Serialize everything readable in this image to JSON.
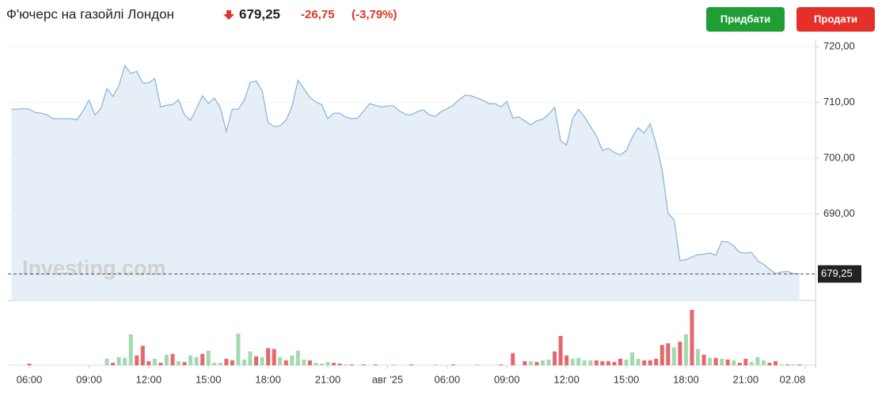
{
  "header": {
    "title": "Ф'ючерс на газойлі Лондон",
    "change": "-26,75",
    "change_pct": "(-3,79%)",
    "buy": "Придбати",
    "sell": "Продати"
  },
  "chart_data": {
    "type": "line",
    "watermark": "Investing.com",
    "line_color": "#8bb8dc",
    "fill_color": "#e6eff7",
    "ylim": [
      674.5,
      721.3
    ],
    "yticks": [
      {
        "value": 690,
        "label": "690,00"
      },
      {
        "value": 700,
        "label": "700,00"
      },
      {
        "value": 710,
        "label": "710,00"
      },
      {
        "value": 720,
        "label": "720,00"
      }
    ],
    "last_price": {
      "value": 679.25,
      "label": "679,25"
    },
    "categories": [
      null,
      null,
      null,
      "06:00",
      null,
      null,
      null,
      null,
      null,
      null,
      null,
      null,
      null,
      "09:00",
      null,
      null,
      null,
      null,
      null,
      null,
      null,
      null,
      null,
      "12:00",
      null,
      null,
      null,
      null,
      null,
      null,
      null,
      null,
      null,
      "15:00",
      null,
      null,
      null,
      null,
      null,
      null,
      null,
      null,
      null,
      "18:00",
      null,
      null,
      null,
      null,
      null,
      null,
      null,
      null,
      null,
      "21:00",
      null,
      null,
      null,
      null,
      null,
      null,
      null,
      null,
      null,
      "авг '25",
      null,
      null,
      null,
      null,
      null,
      null,
      null,
      null,
      null,
      "06:00",
      null,
      null,
      null,
      null,
      null,
      null,
      null,
      null,
      null,
      "09:00",
      null,
      null,
      null,
      null,
      null,
      null,
      null,
      null,
      null,
      "12:00",
      null,
      null,
      null,
      null,
      null,
      null,
      null,
      null,
      null,
      "15:00",
      null,
      null,
      null,
      null,
      null,
      null,
      null,
      null,
      null,
      "18:00",
      null,
      null,
      null,
      null,
      null,
      null,
      null,
      null,
      null,
      "21:00",
      null,
      null,
      null,
      null,
      null,
      null,
      null,
      null,
      null,
      "02.08"
    ],
    "values": [
      708.8,
      708.8,
      708.9,
      708.8,
      708.2,
      708.1,
      707.8,
      707.1,
      707.1,
      707.1,
      707.1,
      706.9,
      708.5,
      710.4,
      707.8,
      708.9,
      712.5,
      711.1,
      713.0,
      716.6,
      715.2,
      715.6,
      713.5,
      713.5,
      714.3,
      709.2,
      709.5,
      709.6,
      710.5,
      707.8,
      706.8,
      708.9,
      711.2,
      709.8,
      710.8,
      709.1,
      704.8,
      708.8,
      708.8,
      710.4,
      713.6,
      713.9,
      712.1,
      706.4,
      705.7,
      705.8,
      706.8,
      709.2,
      714.0,
      712.5,
      710.9,
      710.1,
      709.6,
      707.1,
      708.1,
      708.1,
      707.4,
      707.1,
      707.2,
      708.5,
      709.8,
      709.5,
      709.2,
      709.4,
      709.4,
      708.5,
      707.9,
      707.8,
      708.4,
      708.7,
      707.8,
      707.5,
      708.4,
      708.9,
      709.5,
      710.5,
      711.3,
      711.2,
      710.8,
      710.4,
      709.8,
      709.8,
      709.2,
      710.2,
      707.2,
      707.4,
      706.7,
      706.0,
      706.7,
      707.0,
      707.9,
      709.1,
      703.1,
      702.4,
      707.1,
      708.8,
      707.4,
      705.7,
      704.0,
      701.4,
      701.8,
      701.0,
      700.6,
      701.4,
      703.8,
      705.5,
      704.5,
      706.2,
      702.6,
      697.9,
      690.1,
      689.0,
      681.6,
      681.8,
      682.3,
      682.7,
      682.8,
      683.0,
      682.6,
      685.1,
      685.0,
      684.3,
      683.1,
      683.0,
      683.1,
      681.6,
      681.0,
      680.1,
      679.3,
      679.6,
      679.7,
      679.3,
      679.25,
      null
    ],
    "volume": {
      "values": [
        0,
        0,
        0,
        2,
        0,
        0,
        0,
        0,
        0,
        0,
        0,
        0,
        0,
        0,
        0,
        0,
        8,
        3,
        10,
        9,
        38,
        12,
        24,
        5,
        8,
        3,
        13,
        14,
        5,
        4,
        12,
        10,
        14,
        18,
        3,
        3,
        8,
        6,
        39,
        7,
        17,
        11,
        10,
        21,
        20,
        10,
        6,
        12,
        18,
        7,
        6,
        3,
        2,
        4,
        3,
        2,
        1,
        1,
        0,
        1,
        0,
        1,
        0,
        0,
        1,
        0,
        0,
        1,
        0,
        0,
        0,
        1,
        0,
        0,
        1,
        0,
        0,
        0,
        1,
        0,
        0,
        0,
        1,
        0,
        15,
        0,
        5,
        5,
        4,
        6,
        7,
        17,
        36,
        12,
        8,
        9,
        6,
        6,
        6,
        5,
        5,
        4,
        8,
        7,
        16,
        8,
        6,
        6,
        8,
        25,
        27,
        22,
        29,
        38,
        68,
        20,
        13,
        9,
        9,
        8,
        7,
        6,
        3,
        8,
        4,
        10,
        6,
        3,
        5,
        1,
        1,
        1,
        1,
        0
      ],
      "colors": [
        "#a3d9b1",
        "#a3d9b1",
        "#a3d9b1",
        "#e5676b",
        "#a3d9b1",
        "#a3d9b1",
        "#a3d9b1",
        "#a3d9b1",
        "#a3d9b1",
        "#a3d9b1",
        "#a3d9b1",
        "#a3d9b1",
        "#a3d9b1",
        "#a3d9b1",
        "#a3d9b1",
        "#a3d9b1",
        "#a3d9b1",
        "#e5676b",
        "#a3d9b1",
        "#a3d9b1",
        "#a3d9b1",
        "#e5676b",
        "#e5676b",
        "#e5676b",
        "#a3d9b1",
        "#e5676b",
        "#a3d9b1",
        "#e5676b",
        "#a3d9b1",
        "#e5676b",
        "#a3d9b1",
        "#a3d9b1",
        "#e5676b",
        "#a3d9b1",
        "#a3d9b1",
        "#a3d9b1",
        "#e5676b",
        "#e5676b",
        "#a3d9b1",
        "#a3d9b1",
        "#a3d9b1",
        "#e5676b",
        "#a3d9b1",
        "#e5676b",
        "#e5676b",
        "#a3d9b1",
        "#e5676b",
        "#a3d9b1",
        "#a3d9b1",
        "#a3d9b1",
        "#e5676b",
        "#a3d9b1",
        "#a3d9b1",
        "#a3d9b1",
        "#e5676b",
        "#e5676b",
        "#a3d9b1",
        "#e5676b",
        "#a3d9b1",
        "#e5676b",
        "#a3d9b1",
        "#e5676b",
        "#a3d9b1",
        "#a3d9b1",
        "#a3d9b1",
        "#a3d9b1",
        "#a3d9b1",
        "#e5676b",
        "#a3d9b1",
        "#a3d9b1",
        "#a3d9b1",
        "#a3d9b1",
        "#a3d9b1",
        "#a3d9b1",
        "#e5676b",
        "#a3d9b1",
        "#a3d9b1",
        "#a3d9b1",
        "#a3d9b1",
        "#a3d9b1",
        "#a3d9b1",
        "#a3d9b1",
        "#e5676b",
        "#a3d9b1",
        "#e5676b",
        "#a3d9b1",
        "#e5676b",
        "#a3d9b1",
        "#e5676b",
        "#a3d9b1",
        "#a3d9b1",
        "#e5676b",
        "#e5676b",
        "#e5676b",
        "#a3d9b1",
        "#a3d9b1",
        "#a3d9b1",
        "#a3d9b1",
        "#e5676b",
        "#e5676b",
        "#e5676b",
        "#e5676b",
        "#e5676b",
        "#a3d9b1",
        "#a3d9b1",
        "#a3d9b1",
        "#e5676b",
        "#e5676b",
        "#e5676b",
        "#e5676b",
        "#e5676b",
        "#a3d9b1",
        "#e5676b",
        "#a3d9b1",
        "#e5676b",
        "#a3d9b1",
        "#e5676b",
        "#a3d9b1",
        "#e5676b",
        "#a3d9b1",
        "#e5676b",
        "#a3d9b1",
        "#e5676b",
        "#e5676b",
        "#a3d9b1",
        "#a3d9b1",
        "#a3d9b1",
        "#e5676b",
        "#e5676b",
        "#a3d9b1",
        "#e5676b",
        "#a3d9b1",
        "#e5676b",
        "#a3d9b1"
      ]
    }
  }
}
